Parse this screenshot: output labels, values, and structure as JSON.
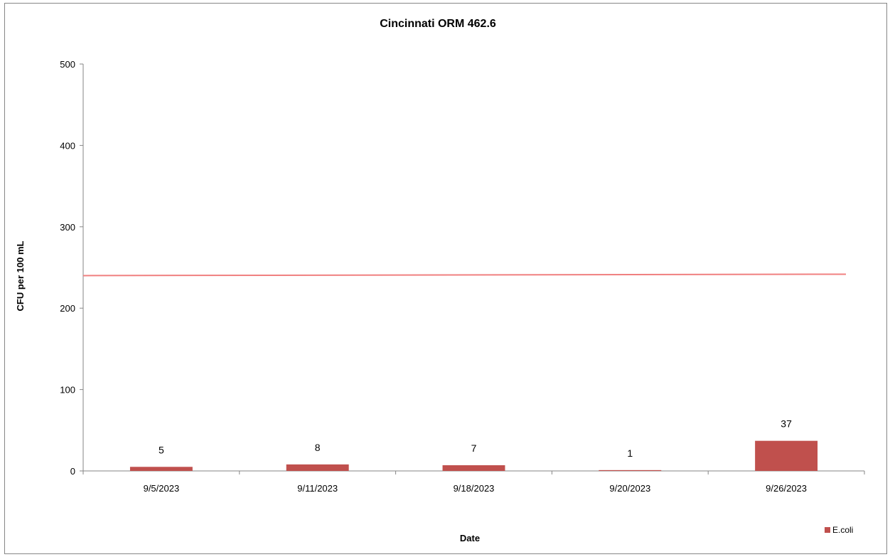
{
  "chart_data": {
    "type": "bar",
    "title": "Cincinnati ORM 462.6",
    "xlabel": "Date",
    "ylabel": "CFU per 100 mL",
    "categories": [
      "9/5/2023",
      "9/11/2023",
      "9/18/2023",
      "9/20/2023",
      "9/26/2023"
    ],
    "series": [
      {
        "name": "E.coli",
        "values": [
          5,
          8,
          7,
          1,
          37
        ],
        "color": "#c0504d"
      }
    ],
    "reference_line": {
      "value": 240,
      "color": "#f08080"
    },
    "ylim": [
      0,
      500
    ],
    "yticks": [
      0,
      100,
      200,
      300,
      400,
      500
    ],
    "grid": false,
    "legend_position": "bottom-right"
  }
}
